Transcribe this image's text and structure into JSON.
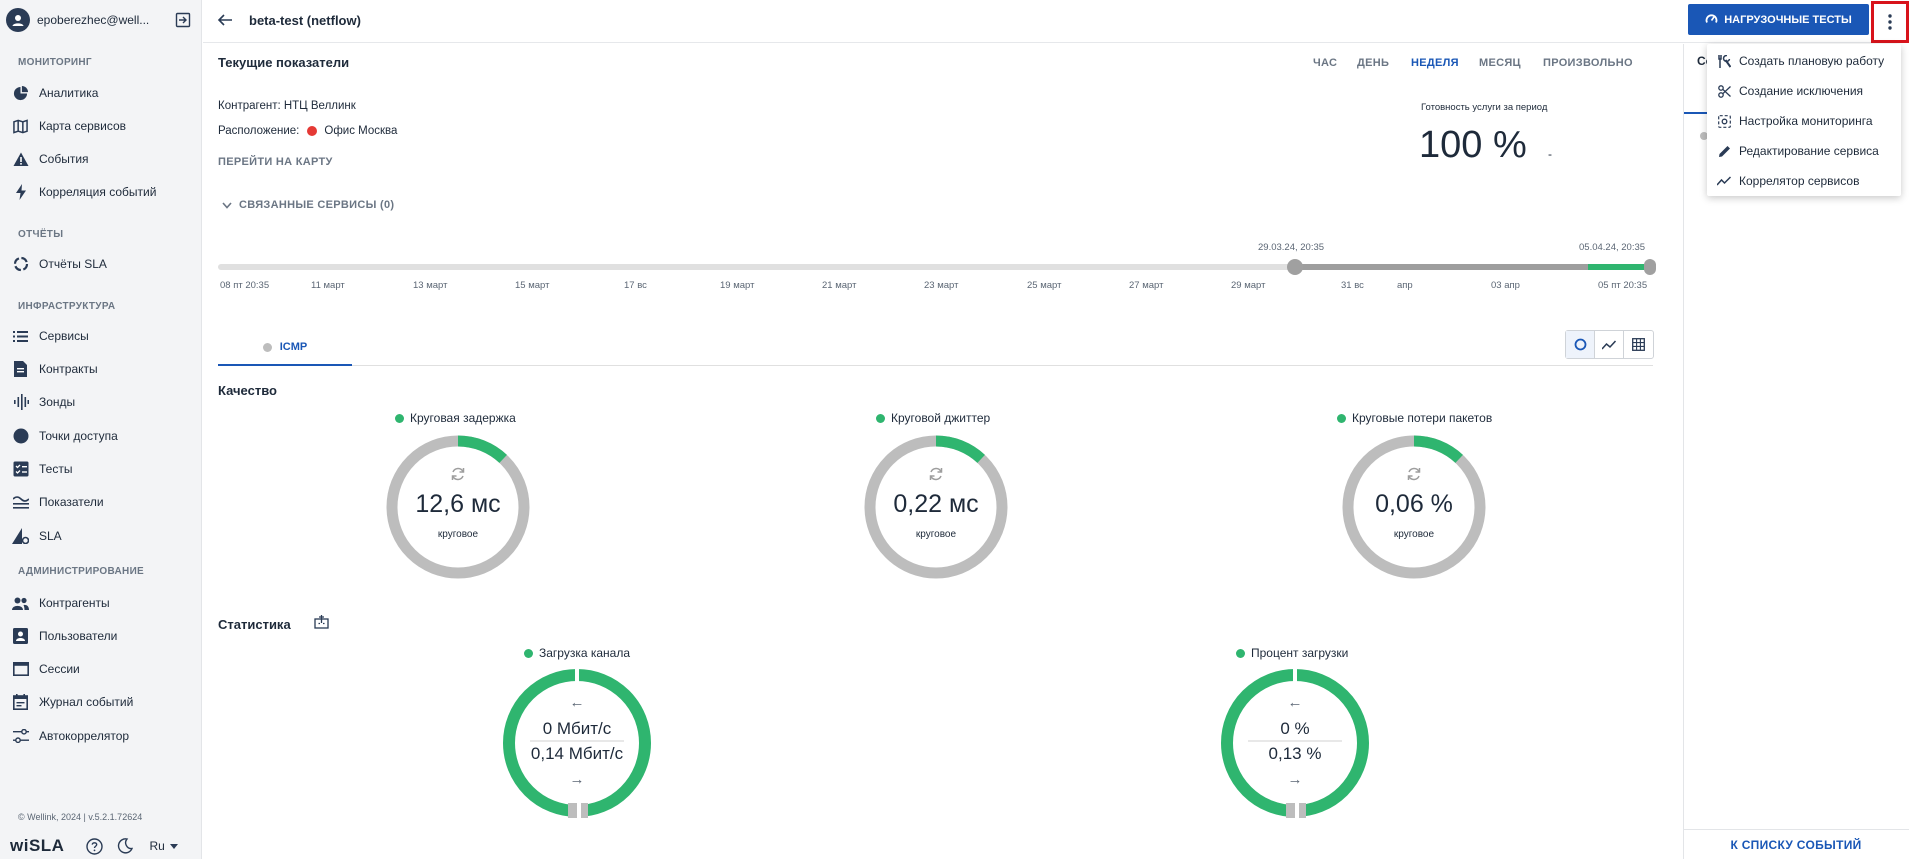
{
  "user": {
    "name": "epoberezhec@well..."
  },
  "sidebar": {
    "sections": [
      "МОНИТОРИНГ",
      "ОТЧЁТЫ",
      "ИНФРАСТРУКТУРА",
      "АДМИНИСТРИРОВАНИЕ"
    ],
    "items": [
      {
        "label": "Аналитика",
        "icon": "pie-chart-icon"
      },
      {
        "label": "Карта сервисов",
        "icon": "map-icon"
      },
      {
        "label": "События",
        "icon": "warning-icon"
      },
      {
        "label": "Корреляция событий",
        "icon": "bolt-icon"
      },
      {
        "label": "Отчёты SLA",
        "icon": "report-icon"
      },
      {
        "label": "Сервисы",
        "icon": "list-icon"
      },
      {
        "label": "Контракты",
        "icon": "document-icon"
      },
      {
        "label": "Зонды",
        "icon": "probe-icon"
      },
      {
        "label": "Точки доступа",
        "icon": "access-point-icon"
      },
      {
        "label": "Тесты",
        "icon": "tests-icon"
      },
      {
        "label": "Показатели",
        "icon": "metrics-icon"
      },
      {
        "label": "SLA",
        "icon": "sla-icon"
      },
      {
        "label": "Контрагенты",
        "icon": "people-icon"
      },
      {
        "label": "Пользователи",
        "icon": "user-card-icon"
      },
      {
        "label": "Сессии",
        "icon": "window-icon"
      },
      {
        "label": "Журнал событий",
        "icon": "calendar-icon"
      },
      {
        "label": "Автокоррелятор",
        "icon": "sliders-icon"
      }
    ],
    "copyright": "© Wellink, 2024 | v.5.2.1.72624",
    "logo": "wiSLA",
    "language": "Ru"
  },
  "header": {
    "title": "beta-test (netflow)",
    "load_tests_button": "НАГРУЗОЧНЫЕ ТЕСТЫ"
  },
  "current": {
    "title": "Текущие показатели",
    "periods": [
      "ЧАС",
      "ДЕНЬ",
      "НЕДЕЛЯ",
      "МЕСЯЦ",
      "ПРОИЗВОЛЬНО"
    ],
    "active_period": "НЕДЕЛЯ",
    "contractor": "Контрагент: НТЦ Веллинк",
    "location_label": "Расположение:",
    "location_value": "Офис Москва",
    "map_link": "ПЕРЕЙТИ НА КАРТУ",
    "related_services": "СВЯЗАННЫЕ СЕРВИСЫ (0)",
    "readiness_label": "Готовность услуги за период",
    "readiness_value": "100 %",
    "readiness_dash": "-"
  },
  "timeline": {
    "range_start_label": "29.03.24, 20:35",
    "range_end_label": "05.04.24, 20:35",
    "ticks": [
      "08 пт 20:35",
      "11 март",
      "13 март",
      "15 март",
      "17 вс",
      "19 март",
      "21 март",
      "23 март",
      "25 март",
      "27 март",
      "29 март",
      "31 вс",
      "апр",
      "03 апр",
      "05 пт 20:35"
    ]
  },
  "tabs": [
    {
      "label": "ICMP"
    }
  ],
  "quality": {
    "title": "Качество",
    "charts": [
      {
        "label": "Круговая задержка",
        "value": "12,6 мс",
        "sub": "круговое",
        "fill_fraction": 0.12
      },
      {
        "label": "Круговой джиттер",
        "value": "0,22 мс",
        "sub": "круговое",
        "fill_fraction": 0.12
      },
      {
        "label": "Круговые потери пакетов",
        "value": "0,06 %",
        "sub": "круговое",
        "fill_fraction": 0.12
      }
    ]
  },
  "stats": {
    "title": "Статистика",
    "charts": [
      {
        "label": "Загрузка канала",
        "in_value": "0 Мбит/с",
        "out_value": "0,14 Мбит/с",
        "in_arrow": "←",
        "out_arrow": "→"
      },
      {
        "label": "Процент загрузки",
        "in_value": "0 %",
        "out_value": "0,13 %",
        "in_arrow": "←",
        "out_arrow": "→"
      }
    ]
  },
  "menu": {
    "items": [
      {
        "label": "Создать плановую работу",
        "icon": "tools-icon"
      },
      {
        "label": "Создание исключения",
        "icon": "scissors-icon"
      },
      {
        "label": "Настройка мониторинга",
        "icon": "monitor-settings-icon"
      },
      {
        "label": "Редактирование сервиса",
        "icon": "pencil-icon"
      },
      {
        "label": "Коррелятор сервисов",
        "icon": "trend-icon"
      }
    ]
  },
  "right_panel": {
    "events_link": "К СПИСКУ СОБЫТИЙ",
    "partial_text": "Со"
  },
  "colors": {
    "accent": "#1a57b6",
    "green": "#2fb56f",
    "grey": "#bdbdbd",
    "red": "#e53935",
    "highlight": "#d8131b"
  }
}
